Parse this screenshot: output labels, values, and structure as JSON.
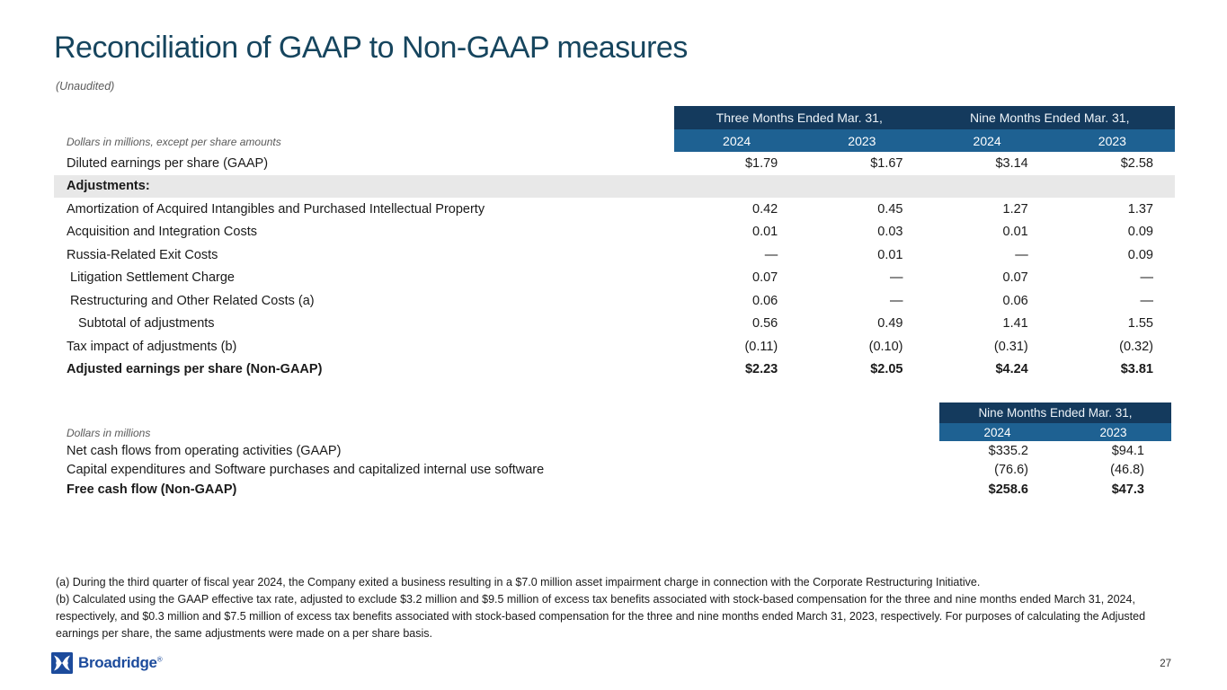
{
  "slide": {
    "title": "Reconciliation of GAAP to Non-GAAP measures",
    "subtitle": "(Unaudited)",
    "page_number": "27",
    "logo_text": "Broadridge",
    "logo_reg_mark": "®"
  },
  "colors": {
    "title": "#16455e",
    "header_band_dark": "#143a5d",
    "header_band_blue": "#1e6192",
    "section_band_gray": "#e8e8e8",
    "logo_blue": "#1c4b9c"
  },
  "table1": {
    "note": "Dollars in millions, except per share amounts",
    "col_groups": [
      "Three Months Ended Mar. 31,",
      "Nine Months Ended Mar. 31,"
    ],
    "years": [
      "2024",
      "2023",
      "2024",
      "2023"
    ],
    "rows": [
      {
        "label": "Diluted earnings per share (GAAP)",
        "values": [
          "$1.79",
          "$1.67",
          "$3.14",
          "$2.58"
        ],
        "style": "normal",
        "indent": 0
      },
      {
        "label": "Adjustments:",
        "values": [
          "",
          "",
          "",
          ""
        ],
        "style": "section",
        "indent": 0
      },
      {
        "label": "Amortization of Acquired Intangibles and Purchased Intellectual Property",
        "values": [
          "0.42",
          "0.45",
          "1.27",
          "1.37"
        ],
        "style": "normal",
        "indent": 0
      },
      {
        "label": "Acquisition and Integration Costs",
        "values": [
          "0.01",
          "0.03",
          "0.01",
          "0.09"
        ],
        "style": "normal",
        "indent": 0
      },
      {
        "label": "Russia-Related Exit Costs",
        "values": [
          "—",
          "0.01",
          "—",
          "0.09"
        ],
        "style": "normal",
        "indent": 0
      },
      {
        "label": "Litigation Settlement Charge",
        "values": [
          "0.07",
          "—",
          "0.07",
          "—"
        ],
        "style": "normal",
        "indent": 1
      },
      {
        "label": "Restructuring and Other Related Costs (a)",
        "values": [
          "0.06",
          "—",
          "0.06",
          "—"
        ],
        "style": "normal",
        "indent": 1
      },
      {
        "label": "Subtotal of adjustments",
        "values": [
          "0.56",
          "0.49",
          "1.41",
          "1.55"
        ],
        "style": "normal",
        "indent": 2
      },
      {
        "label": "Tax impact of adjustments (b)",
        "values": [
          "(0.11)",
          "(0.10)",
          "(0.31)",
          "(0.32)"
        ],
        "style": "normal",
        "indent": 0
      },
      {
        "label": "Adjusted earnings per share (Non-GAAP)",
        "values": [
          "$2.23",
          "$2.05",
          "$4.24",
          "$3.81"
        ],
        "style": "bold",
        "indent": 0
      }
    ]
  },
  "table2": {
    "note": "Dollars in millions",
    "col_group": "Nine Months Ended Mar. 31,",
    "years": [
      "2024",
      "2023"
    ],
    "rows": [
      {
        "label": "Net cash flows from operating activities (GAAP)",
        "values": [
          "$335.2",
          "$94.1"
        ],
        "style": "normal"
      },
      {
        "label": "Capital expenditures and Software purchases and capitalized internal use software",
        "values": [
          "(76.6)",
          "(46.8)"
        ],
        "style": "normal"
      },
      {
        "label": "Free cash flow (Non-GAAP)",
        "values": [
          "$258.6",
          "$47.3"
        ],
        "style": "bold"
      }
    ]
  },
  "footnotes": [
    "(a) During the third quarter of fiscal year 2024, the Company exited a business resulting in a $7.0 million asset impairment charge in connection with the Corporate Restructuring Initiative.",
    "(b) Calculated using the GAAP effective tax rate, adjusted to exclude $3.2 million and $9.5 million of excess tax benefits associated with stock-based compensation for the three and nine months ended March 31, 2024, respectively, and $0.3 million and $7.5 million of excess tax benefits associated with stock-based compensation for the three and nine months ended March 31, 2023, respectively. For purposes of calculating the Adjusted earnings per share, the same adjustments were made on a per share basis."
  ]
}
